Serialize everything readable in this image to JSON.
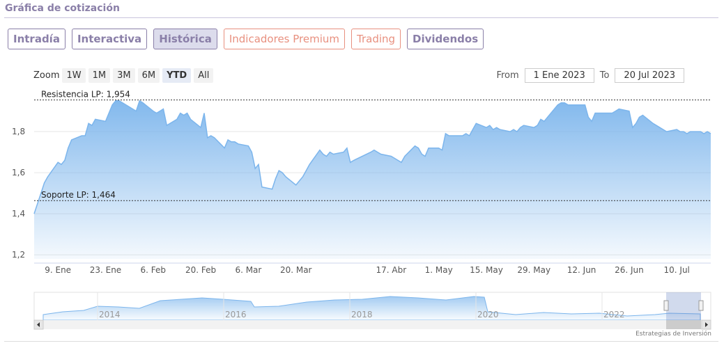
{
  "header": {
    "title": "Gráfica de cotización"
  },
  "tabs": [
    "Intradía",
    "Interactiva",
    "Histórica",
    "Indicadores Premium",
    "Trading",
    "Dividendos"
  ],
  "zoom": {
    "label": "Zoom",
    "buttons": [
      "1W",
      "1M",
      "3M",
      "6M",
      "YTD",
      "All"
    ]
  },
  "range": {
    "from_label": "From",
    "from": "1 Ene 2023",
    "to_label": "To",
    "to": "20 Jul 2023"
  },
  "chart_data": {
    "type": "area",
    "color": "#7cb5ec",
    "grid": true,
    "x": [
      "2023-01-02",
      "2023-01-03",
      "2023-01-04",
      "2023-01-05",
      "2023-01-06",
      "2023-01-09",
      "2023-01-10",
      "2023-01-11",
      "2023-01-12",
      "2023-01-13",
      "2023-01-16",
      "2023-01-17",
      "2023-01-18",
      "2023-01-19",
      "2023-01-20",
      "2023-01-23",
      "2023-01-24",
      "2023-01-25",
      "2023-01-26",
      "2023-01-27",
      "2023-01-30",
      "2023-01-31",
      "2023-02-01",
      "2023-02-02",
      "2023-02-03",
      "2023-02-06",
      "2023-02-07",
      "2023-02-08",
      "2023-02-09",
      "2023-02-10",
      "2023-02-13",
      "2023-02-14",
      "2023-02-15",
      "2023-02-16",
      "2023-02-17",
      "2023-02-20",
      "2023-02-21",
      "2023-02-22",
      "2023-02-23",
      "2023-02-24",
      "2023-02-27",
      "2023-02-28",
      "2023-03-01",
      "2023-03-02",
      "2023-03-03",
      "2023-03-06",
      "2023-03-07",
      "2023-03-08",
      "2023-03-09",
      "2023-03-10",
      "2023-03-13",
      "2023-03-14",
      "2023-03-15",
      "2023-03-16",
      "2023-03-17",
      "2023-03-20",
      "2023-03-21",
      "2023-03-22",
      "2023-03-23",
      "2023-03-24",
      "2023-03-27",
      "2023-03-28",
      "2023-03-29",
      "2023-03-30",
      "2023-03-31",
      "2023-04-03",
      "2023-04-04",
      "2023-04-05",
      "2023-04-06",
      "2023-04-11",
      "2023-04-12",
      "2023-04-13",
      "2023-04-14",
      "2023-04-17",
      "2023-04-18",
      "2023-04-19",
      "2023-04-20",
      "2023-04-21",
      "2023-04-24",
      "2023-04-25",
      "2023-04-26",
      "2023-04-27",
      "2023-04-28",
      "2023-05-01",
      "2023-05-02",
      "2023-05-03",
      "2023-05-04",
      "2023-05-05",
      "2023-05-08",
      "2023-05-09",
      "2023-05-10",
      "2023-05-11",
      "2023-05-12",
      "2023-05-15",
      "2023-05-16",
      "2023-05-17",
      "2023-05-18",
      "2023-05-19",
      "2023-05-22",
      "2023-05-23",
      "2023-05-24",
      "2023-05-25",
      "2023-05-26",
      "2023-05-29",
      "2023-05-30",
      "2023-05-31",
      "2023-06-01",
      "2023-06-02",
      "2023-06-05",
      "2023-06-06",
      "2023-06-07",
      "2023-06-08",
      "2023-06-09",
      "2023-06-12",
      "2023-06-13",
      "2023-06-14",
      "2023-06-15",
      "2023-06-16",
      "2023-06-19",
      "2023-06-20",
      "2023-06-21",
      "2023-06-22",
      "2023-06-23",
      "2023-06-26",
      "2023-06-27",
      "2023-06-28",
      "2023-06-29",
      "2023-06-30",
      "2023-07-03",
      "2023-07-04",
      "2023-07-05",
      "2023-07-06",
      "2023-07-07",
      "2023-07-10",
      "2023-07-11",
      "2023-07-12",
      "2023-07-13",
      "2023-07-14",
      "2023-07-17",
      "2023-07-18",
      "2023-07-19",
      "2023-07-20"
    ],
    "values": [
      1.4,
      1.45,
      1.5,
      1.55,
      1.58,
      1.65,
      1.64,
      1.66,
      1.72,
      1.76,
      1.78,
      1.78,
      1.84,
      1.83,
      1.86,
      1.85,
      1.89,
      1.93,
      1.95,
      1.95,
      1.92,
      1.91,
      1.9,
      1.95,
      1.94,
      1.9,
      1.89,
      1.9,
      1.91,
      1.83,
      1.86,
      1.89,
      1.88,
      1.89,
      1.86,
      1.82,
      1.89,
      1.77,
      1.78,
      1.77,
      1.72,
      1.76,
      1.75,
      1.75,
      1.74,
      1.73,
      1.7,
      1.62,
      1.64,
      1.53,
      1.52,
      1.57,
      1.61,
      1.6,
      1.58,
      1.54,
      1.56,
      1.58,
      1.61,
      1.64,
      1.71,
      1.69,
      1.68,
      1.7,
      1.69,
      1.7,
      1.72,
      1.65,
      1.66,
      1.7,
      1.71,
      1.7,
      1.69,
      1.68,
      1.67,
      1.66,
      1.65,
      1.68,
      1.73,
      1.72,
      1.69,
      1.68,
      1.72,
      1.72,
      1.71,
      1.79,
      1.78,
      1.78,
      1.78,
      1.79,
      1.78,
      1.81,
      1.84,
      1.82,
      1.83,
      1.81,
      1.82,
      1.81,
      1.8,
      1.81,
      1.8,
      1.82,
      1.83,
      1.82,
      1.83,
      1.86,
      1.85,
      1.87,
      1.93,
      1.94,
      1.94,
      1.93,
      1.93,
      1.93,
      1.93,
      1.87,
      1.85,
      1.89,
      1.89,
      1.89,
      1.89,
      1.9,
      1.91,
      1.9,
      1.82,
      1.84,
      1.87,
      1.88,
      1.84,
      1.83,
      1.82,
      1.81,
      1.8,
      1.81,
      1.8,
      1.8,
      1.79,
      1.8,
      1.8,
      1.79,
      1.8,
      1.79
    ],
    "xlim": [
      "2023-01-02",
      "2023-07-20"
    ],
    "xticks": [
      {
        "value": "2023-01-09",
        "label": "9. Ene"
      },
      {
        "value": "2023-01-23",
        "label": "23. Ene"
      },
      {
        "value": "2023-02-06",
        "label": "6. Feb"
      },
      {
        "value": "2023-02-20",
        "label": "20. Feb"
      },
      {
        "value": "2023-03-06",
        "label": "6. Mar"
      },
      {
        "value": "2023-03-20",
        "label": "20. Mar"
      },
      {
        "value": "2023-04-17",
        "label": "17. Abr"
      },
      {
        "value": "2023-05-01",
        "label": "1. May"
      },
      {
        "value": "2023-05-15",
        "label": "15. May"
      },
      {
        "value": "2023-05-29",
        "label": "29. May"
      },
      {
        "value": "2023-06-12",
        "label": "12. Jun"
      },
      {
        "value": "2023-06-26",
        "label": "26. Jun"
      },
      {
        "value": "2023-07-10",
        "label": "10. Jul"
      }
    ],
    "ylim": [
      1.18,
      1.99
    ],
    "yticks": [
      {
        "value": 1.2,
        "label": "1,2"
      },
      {
        "value": 1.4,
        "label": "1,4"
      },
      {
        "value": 1.6,
        "label": "1,6"
      },
      {
        "value": 1.8,
        "label": "1,8"
      }
    ],
    "annotations": [
      {
        "value": 1.954,
        "label": "Resistencia LP: 1,954"
      },
      {
        "value": 1.464,
        "label": "Soporte LP: 1,464"
      }
    ]
  },
  "navigator": {
    "labels": [
      "2014",
      "2016",
      "2018",
      "2020",
      "2022"
    ]
  },
  "footer": {
    "credit": "Estrategias de Inversión"
  }
}
